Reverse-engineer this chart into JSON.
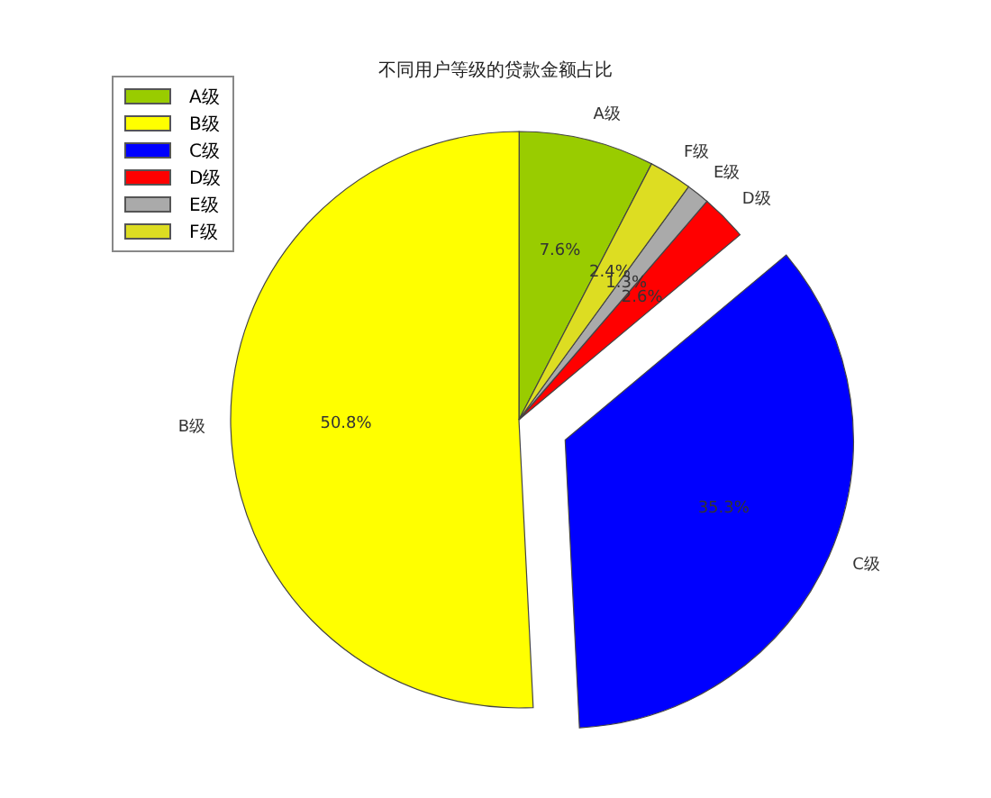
{
  "chart_data": {
    "type": "pie",
    "title": "不同用户等级的贷款金额占比",
    "categories": [
      "A级",
      "B级",
      "C级",
      "D级",
      "E级",
      "F级"
    ],
    "values": [
      7.6,
      50.8,
      35.3,
      2.6,
      1.3,
      2.4
    ],
    "colors": [
      "#99cc00",
      "#ffff00",
      "#0000ff",
      "#ff0000",
      "#aaaaaa",
      "#dddd22"
    ],
    "value_labels": [
      "7.6%",
      "50.8%",
      "35.3%",
      "2.6%",
      "1.3%",
      "2.4%"
    ],
    "legend": "top left"
  }
}
